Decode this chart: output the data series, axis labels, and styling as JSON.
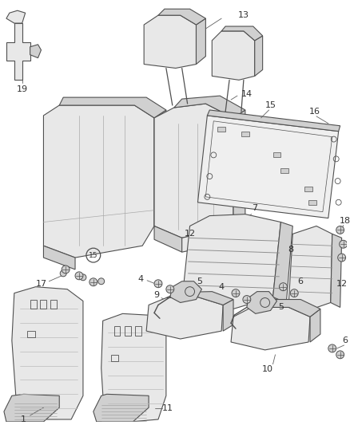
{
  "bg_color": "#ffffff",
  "line_color": "#808080",
  "dark_line": "#505050",
  "fill_light": "#e8e8e8",
  "fill_mid": "#d0d0d0",
  "fill_dark": "#b8b8b8",
  "hatch_fill": "#c8c8c8",
  "figsize": [
    4.38,
    5.33
  ],
  "dpi": 100,
  "label_fs": 8.0,
  "label_color": "#303030",
  "thin_lw": 0.5,
  "main_lw": 0.8
}
